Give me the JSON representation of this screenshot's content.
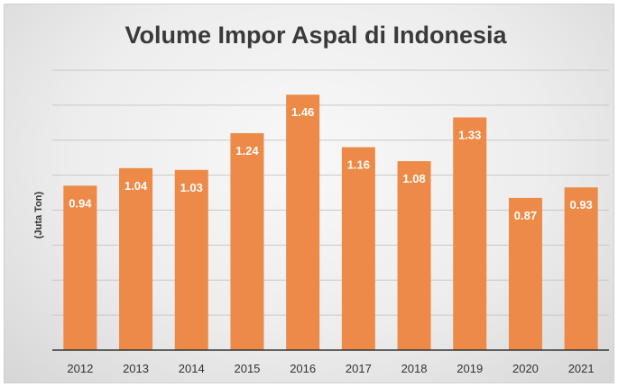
{
  "chart_data": {
    "type": "bar",
    "title": "Volume Impor Aspal di Indonesia",
    "xlabel": "",
    "ylabel": "(Juta Ton)",
    "categories": [
      "2012",
      "2013",
      "2014",
      "2015",
      "2016",
      "2017",
      "2018",
      "2019",
      "2020",
      "2021"
    ],
    "values": [
      0.94,
      1.04,
      1.03,
      1.24,
      1.46,
      1.16,
      1.08,
      1.33,
      0.87,
      0.93
    ],
    "value_labels": [
      "0.94",
      "1.04",
      "1.03",
      "1.24",
      "1.46",
      "1.16",
      "1.08",
      "1.33",
      "0.87",
      "0.93"
    ],
    "ylim": [
      0,
      1.6
    ],
    "grid": true,
    "legend": "none",
    "colors": {
      "bar": "#ed8a47",
      "grid": "#c8c8c8",
      "axis": "#333333"
    }
  }
}
